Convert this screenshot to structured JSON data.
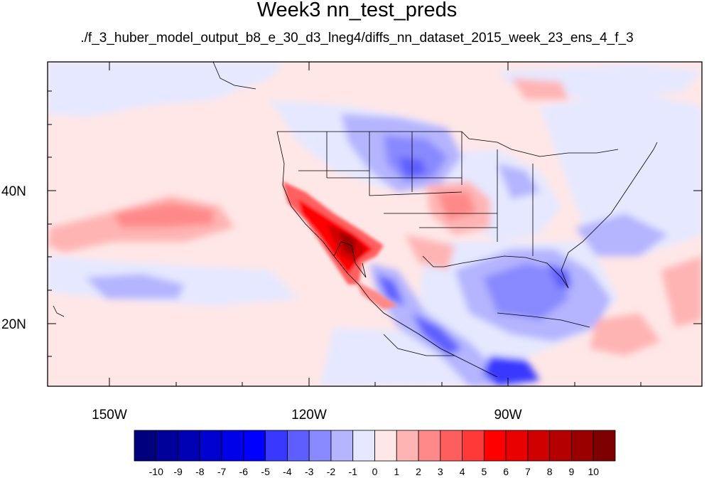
{
  "title": "Week3 nn_test_preds",
  "subtitle": "./f_3_huber_model_output_b8_e_30_d3_lneg4/diffs_nn_dataset_2015_week_23_ens_4_f_3",
  "lon_ticks": [
    "150W",
    "120W",
    "90W"
  ],
  "lat_ticks": [
    "40N",
    "20N"
  ],
  "colorbar": {
    "labels": [
      "-10",
      "-9",
      "-8",
      "-7",
      "-6",
      "-5",
      "-4",
      "-3",
      "-2",
      "-1",
      "0",
      "1",
      "2",
      "3",
      "4",
      "5",
      "6",
      "7",
      "8",
      "9",
      "10"
    ],
    "colors": [
      "#00007f",
      "#00009a",
      "#0000b4",
      "#0000cf",
      "#0000e9",
      "#0000ff",
      "#3838ff",
      "#5e5eff",
      "#8989ff",
      "#b4b4ff",
      "#e5e8ff",
      "#ffe7e7",
      "#ffb4b4",
      "#ff8989",
      "#ff5e5e",
      "#ff3838",
      "#ff0000",
      "#e90000",
      "#cf0000",
      "#b40000",
      "#9a0000",
      "#7f0000"
    ]
  }
}
